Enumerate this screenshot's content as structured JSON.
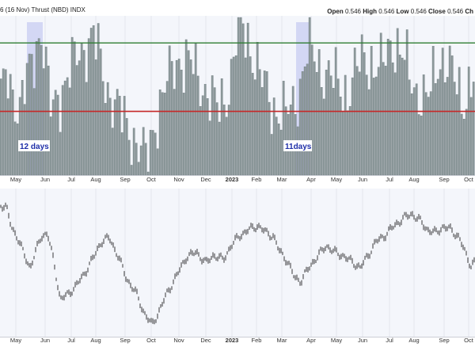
{
  "header": {
    "title": "Thrust (NBD) INDX",
    "date_label": "6 (16 Nov)",
    "ohlc": [
      {
        "label": "Open",
        "value": "0.546"
      },
      {
        "label": "High",
        "value": "0.546"
      },
      {
        "label": "Low",
        "value": "0.546"
      },
      {
        "label": "Close",
        "value": "0.546"
      },
      {
        "label": "Ch",
        "value": ""
      }
    ]
  },
  "colors": {
    "bar": "#8e9a9c",
    "bar_edge": "#5d6b6e",
    "upper_line": "#2e7d32",
    "lower_line": "#c62828",
    "highlight": "#c8ccf2",
    "panel_bg": "#f4f6fb",
    "annotation_bg": "#ffffff",
    "annotation_text": "#1f2fa8",
    "price_line": "#222222"
  },
  "chart_data": [
    {
      "type": "bar",
      "panel": "indicator",
      "title": "Thrust (NBD) INDX",
      "ylim": [
        0.2,
        0.7
      ],
      "upper_threshold": 0.615,
      "lower_threshold": 0.4,
      "x_tick_labels": [
        "May",
        "Jun",
        "Jul",
        "Aug",
        "Sep",
        "Oct",
        "Nov",
        "Dec",
        "2023",
        "Feb",
        "Mar",
        "Apr",
        "May",
        "Jun",
        "Jul",
        "Aug",
        "Sep",
        "Oct"
      ],
      "bold_ticks": [
        "2023"
      ],
      "highlight_periods": [
        {
          "label": "12 days",
          "start": "late May",
          "end": "early Jun"
        },
        {
          "label": "11days",
          "start": "mid Mar",
          "end": "early Apr"
        }
      ],
      "grid": true,
      "legend": "none"
    },
    {
      "type": "line",
      "panel": "price",
      "description_series": "price",
      "x_tick_labels": [
        "May",
        "Jun",
        "Jul",
        "Aug",
        "Sep",
        "Oct",
        "Nov",
        "Dec",
        "2023",
        "Feb",
        "Mar",
        "Apr",
        "May",
        "Jun",
        "Jul",
        "Aug",
        "Sep",
        "Oct"
      ],
      "bold_ticks": [
        "2023"
      ],
      "grid": true,
      "legend": "none"
    }
  ]
}
